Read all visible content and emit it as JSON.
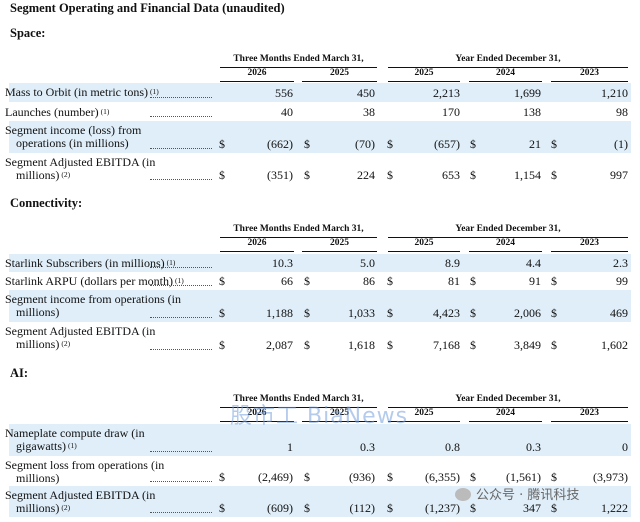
{
  "title": "Segment Operating and Financial Data (unaudited)",
  "watermark": "股市工 BiaNews",
  "footer_badge": "公众号 · 腾讯科技",
  "sections": [
    {
      "name": "Space:",
      "period_headers": [
        "Three Months Ended March 31,",
        "Year Ended December 31,"
      ],
      "years": [
        "2026",
        "2025",
        "2025",
        "2024",
        "2023"
      ],
      "rows": [
        {
          "label": "Mass to Orbit (in metric tons)",
          "note": "(1)",
          "values": [
            "556",
            "450",
            "2,213",
            "1,699",
            "1,210"
          ],
          "dollar": false
        },
        {
          "label": "Launches (number)",
          "note": "(1)",
          "values": [
            "40",
            "38",
            "170",
            "138",
            "98"
          ],
          "dollar": false
        },
        {
          "label": "Segment income (loss) from",
          "label2": "operations (in millions)",
          "note": "",
          "values": [
            "(662)",
            "(70)",
            "(657)",
            "21",
            "(1)"
          ],
          "dollar": true
        },
        {
          "label": "Segment Adjusted EBITDA (in",
          "label2": "millions)",
          "note": "(2)",
          "values": [
            "(351)",
            "224",
            "653",
            "1,154",
            "997"
          ],
          "dollar": true
        }
      ]
    },
    {
      "name": "Connectivity:",
      "period_headers": [
        "Three Months Ended March 31,",
        "Year Ended December 31,"
      ],
      "years": [
        "2026",
        "2025",
        "2025",
        "2024",
        "2023"
      ],
      "rows": [
        {
          "label": "Starlink Subscribers (in millions)",
          "note": "(1)",
          "values": [
            "10.3",
            "5.0",
            "8.9",
            "4.4",
            "2.3"
          ],
          "dollar": false
        },
        {
          "label": "Starlink ARPU (dollars per month)",
          "note": "(1)",
          "values": [
            "66",
            "86",
            "81",
            "91",
            "99"
          ],
          "dollar": true
        },
        {
          "label": "Segment income from operations (in",
          "label2": "millions)",
          "note": "",
          "values": [
            "1,188",
            "1,033",
            "4,423",
            "2,006",
            "469"
          ],
          "dollar": true
        },
        {
          "label": "Segment Adjusted EBITDA (in",
          "label2": "millions)",
          "note": "(2)",
          "values": [
            "2,087",
            "1,618",
            "7,168",
            "3,849",
            "1,602"
          ],
          "dollar": true
        }
      ]
    },
    {
      "name": "AI:",
      "period_headers": [
        "Three Months Ended March 31,",
        "Year Ended December 31,"
      ],
      "years": [
        "2026",
        "2025",
        "2025",
        "2024",
        "2023"
      ],
      "rows": [
        {
          "label": "Nameplate compute draw (in",
          "label2": "gigawatts)",
          "note": "(1)",
          "values": [
            "1",
            "0.3",
            "0.8",
            "0.3",
            "0"
          ],
          "dollar": false
        },
        {
          "label": "Segment loss from operations (in",
          "label2": "millions)",
          "note": "",
          "values": [
            "(2,469)",
            "(936)",
            "(6,355)",
            "(1,561)",
            "(3,973)"
          ],
          "dollar": true
        },
        {
          "label": "Segment Adjusted EBITDA (in",
          "label2": "millions)",
          "note": "(2)",
          "values": [
            "(609)",
            "(112)",
            "(1,237)",
            "347",
            "1,222"
          ],
          "dollar": true
        }
      ]
    }
  ]
}
